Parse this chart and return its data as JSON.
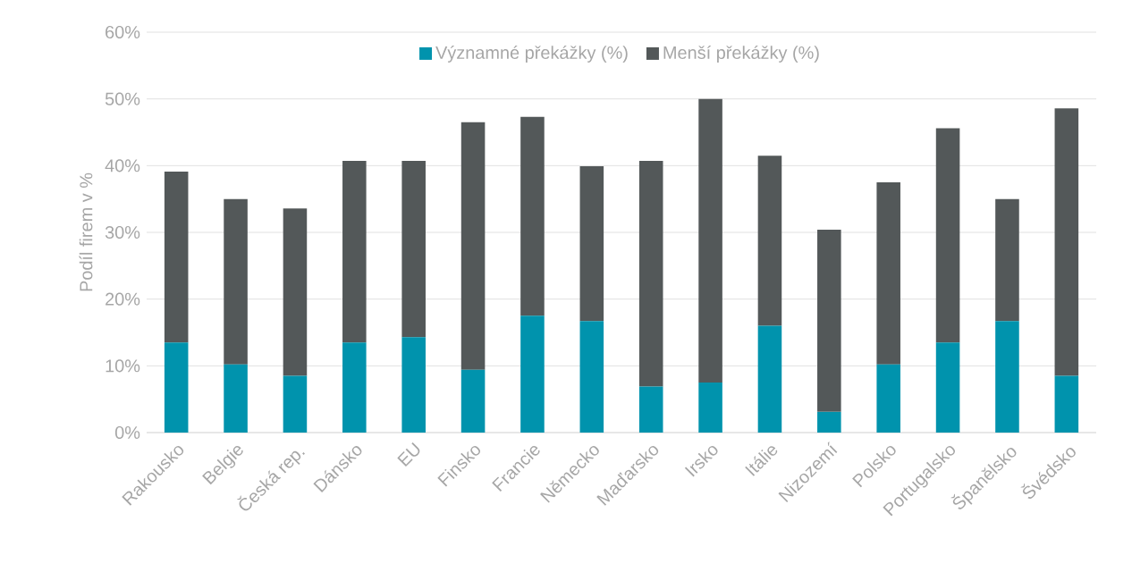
{
  "chart_data": {
    "type": "bar",
    "stacked": true,
    "ylabel": "Podíl firem v %",
    "categories": [
      "Rakousko",
      "Belgie",
      "Česká rep.",
      "Dánsko",
      "EU",
      "Finsko",
      "Francie",
      "Německo",
      "Maďarsko",
      "Irsko",
      "Itálie",
      "Nizozemí",
      "Polsko",
      "Portugalsko",
      "Španělsko",
      "Švédsko"
    ],
    "series": [
      {
        "name": "Významné překážky (%)",
        "color": "#0093ad",
        "values": [
          13.5,
          10.2,
          8.5,
          13.5,
          14.3,
          9.4,
          17.5,
          16.7,
          6.9,
          7.5,
          16.0,
          3.1,
          10.2,
          13.5,
          16.7,
          8.5
        ]
      },
      {
        "name": "Menší překážky (%)",
        "color": "#535859",
        "values": [
          25.6,
          24.8,
          25.1,
          27.2,
          26.4,
          37.1,
          29.8,
          23.2,
          33.8,
          42.5,
          25.5,
          27.3,
          27.3,
          32.1,
          18.3,
          40.1
        ]
      }
    ],
    "ylim": [
      0,
      60
    ],
    "yticks": [
      {
        "value": 0,
        "label": "0%"
      },
      {
        "value": 10,
        "label": "10%"
      },
      {
        "value": 20,
        "label": "20%"
      },
      {
        "value": 30,
        "label": "30%"
      },
      {
        "value": 40,
        "label": "40%"
      },
      {
        "value": 50,
        "label": "50%"
      },
      {
        "value": 60,
        "label": "60%"
      }
    ],
    "grid": "y",
    "legend": "top"
  }
}
